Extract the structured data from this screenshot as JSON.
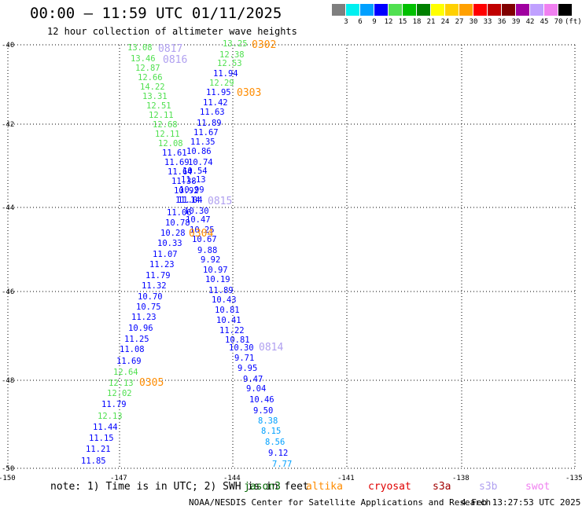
{
  "header": {
    "title": "00:00 – 11:59 UTC 01/11/2025",
    "subtitle": "12 hour collection of altimeter wave heights"
  },
  "color_scale": {
    "unit_label": "(ft)",
    "ticks": [
      "3",
      "6",
      "9",
      "12",
      "15",
      "18",
      "21",
      "24",
      "27",
      "30",
      "33",
      "36",
      "39",
      "42",
      "45",
      "70"
    ],
    "colors": [
      "#7f7f7f",
      "#00f0f0",
      "#00a0ff",
      "#0000ff",
      "#50e050",
      "#00c000",
      "#008000",
      "#ffff00",
      "#ffd000",
      "#ffa000",
      "#ff0000",
      "#c00000",
      "#800000",
      "#a000a0",
      "#c0a0ff",
      "#f080f0",
      "#000000"
    ]
  },
  "axes": {
    "lat_labels": [
      "-40",
      "-42",
      "-44",
      "-46",
      "-48",
      "-50"
    ],
    "lon_labels": [
      "-150",
      "-147",
      "-144",
      "-141",
      "-138",
      "-135"
    ]
  },
  "passes": [
    {
      "id": "0302",
      "color": "#ff8c00"
    },
    {
      "id": "0303",
      "color": "#ff8c00"
    },
    {
      "id": "0817",
      "color": "#b0a0f0"
    },
    {
      "id": "0816",
      "color": "#b0a0f0"
    },
    {
      "id": "0815",
      "color": "#b0a0f0"
    },
    {
      "id": "0814",
      "color": "#b0a0f0"
    },
    {
      "id": "0304",
      "color": "#ff8c00"
    },
    {
      "id": "0305",
      "color": "#ff8c00"
    }
  ],
  "track_values": [
    {
      "v": "13.08",
      "c": "#50e050"
    },
    {
      "v": "13.46",
      "c": "#50e050"
    },
    {
      "v": "12.87",
      "c": "#50e050"
    },
    {
      "v": "12.66",
      "c": "#50e050"
    },
    {
      "v": "14.22",
      "c": "#50e050"
    },
    {
      "v": "13.31",
      "c": "#50e050"
    },
    {
      "v": "12.51",
      "c": "#50e050"
    },
    {
      "v": "12.11",
      "c": "#50e050"
    },
    {
      "v": "12.68",
      "c": "#50e050"
    },
    {
      "v": "12.11",
      "c": "#50e050"
    },
    {
      "v": "12.08",
      "c": "#50e050"
    },
    {
      "v": "11.61",
      "c": "#0000ff"
    },
    {
      "v": "11.69",
      "c": "#0000ff"
    },
    {
      "v": "11.64",
      "c": "#0000ff"
    },
    {
      "v": "11.38",
      "c": "#0000ff"
    },
    {
      "v": "10.92",
      "c": "#0000ff"
    },
    {
      "v": "11.14",
      "c": "#0000ff"
    },
    {
      "v": "11.06",
      "c": "#0000ff"
    },
    {
      "v": "10.78",
      "c": "#0000ff"
    },
    {
      "v": "10.28",
      "c": "#0000ff"
    },
    {
      "v": "10.33",
      "c": "#0000ff"
    },
    {
      "v": "11.07",
      "c": "#0000ff"
    },
    {
      "v": "11.23",
      "c": "#0000ff"
    },
    {
      "v": "11.79",
      "c": "#0000ff"
    },
    {
      "v": "11.32",
      "c": "#0000ff"
    },
    {
      "v": "10.70",
      "c": "#0000ff"
    },
    {
      "v": "10.75",
      "c": "#0000ff"
    },
    {
      "v": "11.23",
      "c": "#0000ff"
    },
    {
      "v": "10.96",
      "c": "#0000ff"
    },
    {
      "v": "11.25",
      "c": "#0000ff"
    },
    {
      "v": "11.08",
      "c": "#0000ff"
    },
    {
      "v": "11.69",
      "c": "#0000ff"
    },
    {
      "v": "12.64",
      "c": "#50e050"
    },
    {
      "v": "12.13",
      "c": "#50e050"
    },
    {
      "v": "12.02",
      "c": "#50e050"
    },
    {
      "v": "11.79",
      "c": "#0000ff"
    },
    {
      "v": "12.13",
      "c": "#50e050"
    },
    {
      "v": "11.44",
      "c": "#0000ff"
    },
    {
      "v": "11.15",
      "c": "#0000ff"
    },
    {
      "v": "11.21",
      "c": "#0000ff"
    },
    {
      "v": "11.85",
      "c": "#0000ff"
    },
    {
      "v": "13.25",
      "c": "#50e050"
    },
    {
      "v": "12.38",
      "c": "#50e050"
    },
    {
      "v": "12.53",
      "c": "#50e050"
    },
    {
      "v": "11.94",
      "c": "#0000ff"
    },
    {
      "v": "12.29",
      "c": "#50e050"
    },
    {
      "v": "11.95",
      "c": "#0000ff"
    },
    {
      "v": "11.42",
      "c": "#0000ff"
    },
    {
      "v": "11.63",
      "c": "#0000ff"
    },
    {
      "v": "11.89",
      "c": "#0000ff"
    },
    {
      "v": "11.67",
      "c": "#0000ff"
    },
    {
      "v": "11.35",
      "c": "#0000ff"
    },
    {
      "v": "10.74",
      "c": "#0000ff"
    },
    {
      "v": "10.86",
      "c": "#0000ff"
    },
    {
      "v": "10.54",
      "c": "#0000ff"
    },
    {
      "v": "11.13",
      "c": "#0000ff"
    },
    {
      "v": "10.99",
      "c": "#0000ff"
    },
    {
      "v": "11.04",
      "c": "#0000ff"
    },
    {
      "v": "10.30",
      "c": "#0000ff"
    },
    {
      "v": "10.47",
      "c": "#0000ff"
    },
    {
      "v": "10.25",
      "c": "#0000ff"
    },
    {
      "v": "10.67",
      "c": "#0000ff"
    },
    {
      "v": "9.88",
      "c": "#0000ff"
    },
    {
      "v": "9.92",
      "c": "#0000ff"
    },
    {
      "v": "10.97",
      "c": "#0000ff"
    },
    {
      "v": "10.19",
      "c": "#0000ff"
    },
    {
      "v": "11.89",
      "c": "#0000ff"
    },
    {
      "v": "10.43",
      "c": "#0000ff"
    },
    {
      "v": "10.81",
      "c": "#0000ff"
    },
    {
      "v": "10.41",
      "c": "#0000ff"
    },
    {
      "v": "11.22",
      "c": "#0000ff"
    },
    {
      "v": "10.81",
      "c": "#0000ff"
    },
    {
      "v": "10.30",
      "c": "#0000ff"
    },
    {
      "v": "9.71",
      "c": "#0000ff"
    },
    {
      "v": "9.95",
      "c": "#0000ff"
    },
    {
      "v": "9.47",
      "c": "#0000ff"
    },
    {
      "v": "9.04",
      "c": "#0000ff"
    },
    {
      "v": "10.46",
      "c": "#0000ff"
    },
    {
      "v": "9.50",
      "c": "#0000ff"
    },
    {
      "v": "8.38",
      "c": "#00a0ff"
    },
    {
      "v": "8.15",
      "c": "#00a0ff"
    },
    {
      "v": "8.56",
      "c": "#00a0ff"
    },
    {
      "v": "9.12",
      "c": "#0000ff"
    },
    {
      "v": "7.77",
      "c": "#00a0ff"
    }
  ],
  "footer": {
    "note": "note: 1) Time is in UTC; 2) SWH is in feet",
    "legend": [
      {
        "name": "jason3",
        "color": "#006400"
      },
      {
        "name": "altika",
        "color": "#ff8c00"
      },
      {
        "name": "cryosat",
        "color": "#e00000"
      },
      {
        "name": "s3a",
        "color": "#a00000"
      },
      {
        "name": "s3b",
        "color": "#b0a0f0"
      },
      {
        "name": "swot",
        "color": "#f080f0"
      }
    ],
    "credit": "NOAA/NESDIS Center for Satellite Applications and Research",
    "timestamp": "4 Feb 13:27:53 UTC 2025"
  }
}
